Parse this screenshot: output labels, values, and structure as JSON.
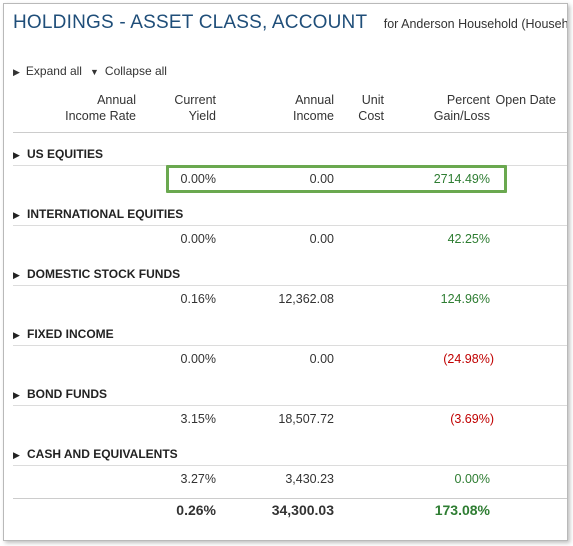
{
  "header": {
    "title": "HOLDINGS - ASSET CLASS, ACCOUNT",
    "subtitle": "for Anderson Household (Household)"
  },
  "controls": {
    "expand_label": "Expand all",
    "collapse_label": "Collapse all",
    "expand_icon": "triangle-right-icon",
    "collapse_icon": "triangle-down-icon"
  },
  "columns": [
    {
      "l1": "Annual",
      "l2": "Income Rate"
    },
    {
      "l1": "Current",
      "l2": "Yield"
    },
    {
      "l1": "Annual",
      "l2": "Income"
    },
    {
      "l1": "Unit",
      "l2": "Cost"
    },
    {
      "l1": "Percent",
      "l2": "Gain/Loss"
    },
    {
      "l1": "",
      "l2": "Open Date"
    }
  ],
  "groups": [
    {
      "name": "US EQUITIES",
      "current_yield": "0.00%",
      "annual_income": "0.00",
      "percent_gain_loss": "2714.49%",
      "gain_status": "gain"
    },
    {
      "name": "INTERNATIONAL EQUITIES",
      "current_yield": "0.00%",
      "annual_income": "0.00",
      "percent_gain_loss": "42.25%",
      "gain_status": "gain"
    },
    {
      "name": "DOMESTIC STOCK FUNDS",
      "current_yield": "0.16%",
      "annual_income": "12,362.08",
      "percent_gain_loss": "124.96%",
      "gain_status": "gain"
    },
    {
      "name": "FIXED INCOME",
      "current_yield": "0.00%",
      "annual_income": "0.00",
      "percent_gain_loss": "(24.98%)",
      "gain_status": "loss"
    },
    {
      "name": "BOND FUNDS",
      "current_yield": "3.15%",
      "annual_income": "18,507.72",
      "percent_gain_loss": "(3.69%)",
      "gain_status": "loss"
    },
    {
      "name": "CASH AND EQUIVALENTS",
      "current_yield": "3.27%",
      "annual_income": "3,430.23",
      "percent_gain_loss": "0.00%",
      "gain_status": "gain"
    }
  ],
  "totals": {
    "current_yield": "0.26%",
    "annual_income": "34,300.03",
    "percent_gain_loss": "173.08%"
  },
  "colors": {
    "title": "#1f4e79",
    "gain": "#2e7d32",
    "loss": "#c00000",
    "highlight": "#6aa84f"
  }
}
